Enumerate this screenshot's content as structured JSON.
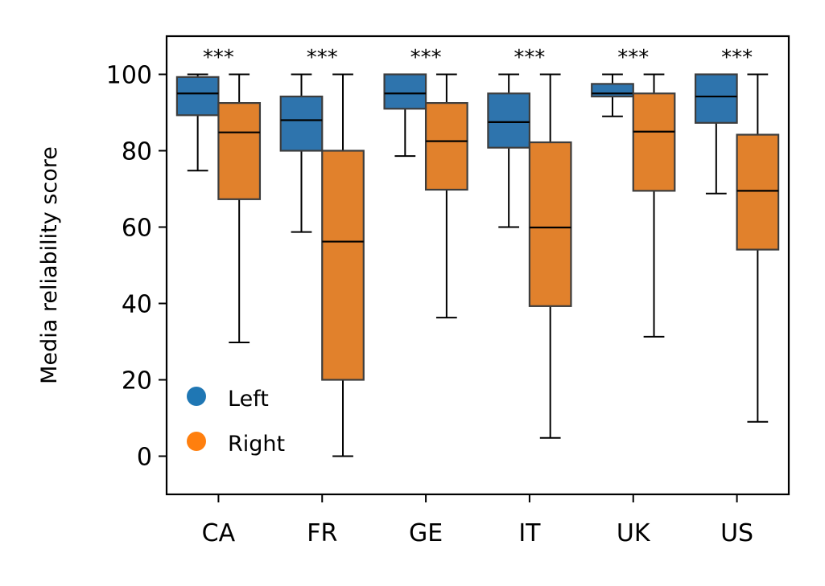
{
  "chart_data": {
    "type": "box",
    "title": "",
    "xlabel": "",
    "ylabel": "Media reliability score",
    "ylim": [
      -10,
      110
    ],
    "yticks": [
      0,
      20,
      40,
      60,
      80,
      100
    ],
    "categories": [
      "CA",
      "FR",
      "GE",
      "IT",
      "UK",
      "US"
    ],
    "legend": {
      "position": "lower-left"
    },
    "series": [
      {
        "name": "Left",
        "color": "#2e74ad",
        "marker_color": "#1f77b4",
        "boxes": [
          {
            "whislo": 74.8,
            "q1": 89.3,
            "med": 95.0,
            "q3": 99.3,
            "whishi": 100
          },
          {
            "whislo": 58.7,
            "q1": 80.0,
            "med": 88.0,
            "q3": 94.2,
            "whishi": 100
          },
          {
            "whislo": 78.6,
            "q1": 91.0,
            "med": 95.0,
            "q3": 100,
            "whishi": 100
          },
          {
            "whislo": 60.0,
            "q1": 80.8,
            "med": 87.5,
            "q3": 95.0,
            "whishi": 100
          },
          {
            "whislo": 89.0,
            "q1": 94.2,
            "med": 95.0,
            "q3": 97.5,
            "whishi": 100
          },
          {
            "whislo": 68.8,
            "q1": 87.3,
            "med": 94.2,
            "q3": 100,
            "whishi": 100
          }
        ]
      },
      {
        "name": "Right",
        "color": "#e1812c",
        "marker_color": "#ff7f0e",
        "boxes": [
          {
            "whislo": 29.8,
            "q1": 67.3,
            "med": 84.8,
            "q3": 92.5,
            "whishi": 100
          },
          {
            "whislo": 0,
            "q1": 20.0,
            "med": 56.2,
            "q3": 80.0,
            "whishi": 100
          },
          {
            "whislo": 36.3,
            "q1": 69.8,
            "med": 82.5,
            "q3": 92.5,
            "whishi": 100
          },
          {
            "whislo": 4.8,
            "q1": 39.3,
            "med": 59.9,
            "q3": 82.2,
            "whishi": 100
          },
          {
            "whislo": 31.3,
            "q1": 69.5,
            "med": 85.0,
            "q3": 95.0,
            "whishi": 100
          },
          {
            "whislo": 9.0,
            "q1": 54.1,
            "med": 69.5,
            "q3": 84.2,
            "whishi": 100
          }
        ]
      }
    ],
    "annotations": [
      "***",
      "***",
      "***",
      "***",
      "***",
      "***"
    ]
  }
}
